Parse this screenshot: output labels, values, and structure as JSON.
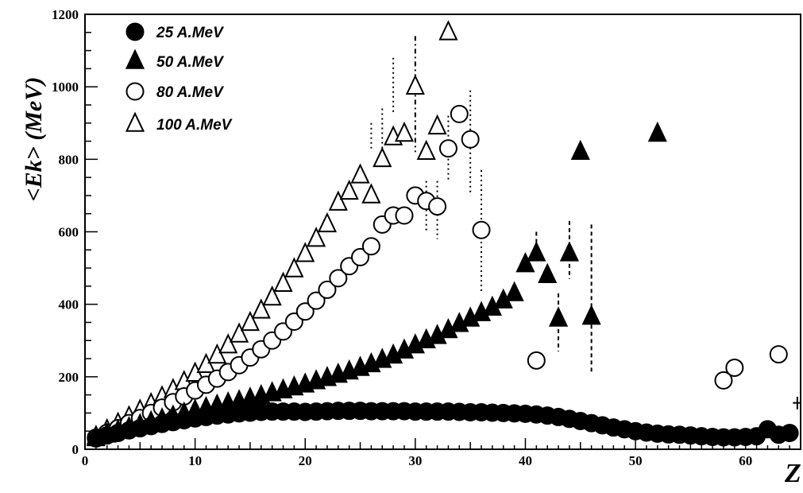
{
  "chart_data": {
    "type": "scatter",
    "xlabel": "Z",
    "ylabel": "<Ek> (MeV)",
    "xlim": [
      0,
      65
    ],
    "ylim": [
      0,
      1200
    ],
    "xticks": [
      "0",
      "10",
      "20",
      "30",
      "40",
      "50",
      "60"
    ],
    "yticks": [
      "0",
      "200",
      "400",
      "600",
      "800",
      "1000",
      "1200"
    ],
    "grid": false,
    "legend_position": "top-left",
    "series": [
      {
        "name": "25 A.MeV",
        "marker": "filled-circle",
        "points": [
          [
            1,
            30
          ],
          [
            2,
            38
          ],
          [
            3,
            45
          ],
          [
            4,
            52
          ],
          [
            5,
            58
          ],
          [
            6,
            64
          ],
          [
            7,
            70
          ],
          [
            8,
            75
          ],
          [
            9,
            80
          ],
          [
            10,
            85
          ],
          [
            11,
            89
          ],
          [
            12,
            93
          ],
          [
            13,
            96
          ],
          [
            14,
            99
          ],
          [
            15,
            101
          ],
          [
            16,
            103
          ],
          [
            17,
            104
          ],
          [
            18,
            104
          ],
          [
            19,
            104
          ],
          [
            20,
            103
          ],
          [
            21,
            104
          ],
          [
            22,
            105
          ],
          [
            23,
            106
          ],
          [
            24,
            106
          ],
          [
            25,
            106
          ],
          [
            26,
            105
          ],
          [
            27,
            105
          ],
          [
            28,
            105
          ],
          [
            29,
            105
          ],
          [
            30,
            104
          ],
          [
            31,
            104
          ],
          [
            32,
            104
          ],
          [
            33,
            104
          ],
          [
            34,
            103
          ],
          [
            35,
            102
          ],
          [
            36,
            102
          ],
          [
            37,
            101
          ],
          [
            38,
            100
          ],
          [
            39,
            99
          ],
          [
            40,
            98
          ],
          [
            41,
            96
          ],
          [
            42,
            93
          ],
          [
            43,
            89
          ],
          [
            44,
            84
          ],
          [
            45,
            78
          ],
          [
            46,
            72
          ],
          [
            47,
            66
          ],
          [
            48,
            60
          ],
          [
            49,
            55
          ],
          [
            50,
            50
          ],
          [
            51,
            46
          ],
          [
            52,
            43
          ],
          [
            53,
            41
          ],
          [
            54,
            40
          ],
          [
            55,
            38
          ],
          [
            56,
            36
          ],
          [
            57,
            34
          ],
          [
            58,
            33
          ],
          [
            59,
            33
          ],
          [
            60,
            34
          ],
          [
            61,
            36
          ],
          [
            62,
            55
          ],
          [
            63,
            40
          ],
          [
            64,
            45
          ]
        ]
      },
      {
        "name": "50 A.MeV",
        "marker": "filled-triangle",
        "points": [
          [
            1,
            30
          ],
          [
            2,
            40
          ],
          [
            3,
            50
          ],
          [
            4,
            58
          ],
          [
            5,
            66
          ],
          [
            6,
            74
          ],
          [
            7,
            82
          ],
          [
            8,
            90
          ],
          [
            9,
            98
          ],
          [
            10,
            106
          ],
          [
            11,
            113
          ],
          [
            12,
            120
          ],
          [
            13,
            126
          ],
          [
            14,
            132
          ],
          [
            15,
            139
          ],
          [
            16,
            146
          ],
          [
            17,
            154
          ],
          [
            18,
            162
          ],
          [
            19,
            170
          ],
          [
            20,
            178
          ],
          [
            21,
            187
          ],
          [
            22,
            196
          ],
          [
            23,
            205
          ],
          [
            24,
            214
          ],
          [
            25,
            224
          ],
          [
            26,
            234
          ],
          [
            27,
            246
          ],
          [
            28,
            258
          ],
          [
            29,
            272
          ],
          [
            30,
            286
          ],
          [
            31,
            300
          ],
          [
            32,
            312
          ],
          [
            33,
            328
          ],
          [
            34,
            345
          ],
          [
            35,
            360
          ],
          [
            36,
            375
          ],
          [
            37,
            390
          ],
          [
            38,
            410
          ],
          [
            39,
            430
          ],
          [
            40,
            510
          ],
          [
            41,
            540
          ],
          [
            42,
            480
          ],
          [
            43,
            360
          ],
          [
            44,
            540
          ],
          [
            45,
            820
          ],
          [
            46,
            365
          ],
          [
            52,
            870
          ]
        ]
      },
      {
        "name": "80 A.MeV",
        "marker": "open-circle",
        "points": [
          [
            1,
            32
          ],
          [
            2,
            45
          ],
          [
            3,
            58
          ],
          [
            4,
            72
          ],
          [
            5,
            86
          ],
          [
            6,
            100
          ],
          [
            7,
            115
          ],
          [
            8,
            130
          ],
          [
            9,
            146
          ],
          [
            10,
            162
          ],
          [
            11,
            178
          ],
          [
            12,
            195
          ],
          [
            13,
            213
          ],
          [
            14,
            232
          ],
          [
            15,
            253
          ],
          [
            16,
            276
          ],
          [
            17,
            300
          ],
          [
            18,
            325
          ],
          [
            19,
            352
          ],
          [
            20,
            380
          ],
          [
            21,
            410
          ],
          [
            22,
            440
          ],
          [
            23,
            472
          ],
          [
            24,
            505
          ],
          [
            25,
            530
          ],
          [
            26,
            560
          ],
          [
            27,
            620
          ],
          [
            28,
            645
          ],
          [
            29,
            645
          ],
          [
            30,
            700
          ],
          [
            31,
            685
          ],
          [
            32,
            670
          ],
          [
            33,
            830
          ],
          [
            34,
            925
          ],
          [
            35,
            855
          ],
          [
            36,
            605
          ],
          [
            41,
            245
          ],
          [
            58,
            190
          ],
          [
            59,
            225
          ],
          [
            63,
            262
          ]
        ]
      },
      {
        "name": "100 A.MeV",
        "marker": "open-triangle",
        "points": [
          [
            1,
            34
          ],
          [
            2,
            52
          ],
          [
            3,
            70
          ],
          [
            4,
            88
          ],
          [
            5,
            106
          ],
          [
            6,
            124
          ],
          [
            7,
            143
          ],
          [
            8,
            163
          ],
          [
            9,
            185
          ],
          [
            10,
            208
          ],
          [
            11,
            232
          ],
          [
            12,
            258
          ],
          [
            13,
            286
          ],
          [
            14,
            316
          ],
          [
            15,
            348
          ],
          [
            16,
            382
          ],
          [
            17,
            418
          ],
          [
            18,
            456
          ],
          [
            19,
            496
          ],
          [
            20,
            538
          ],
          [
            21,
            580
          ],
          [
            22,
            620
          ],
          [
            23,
            680
          ],
          [
            24,
            710
          ],
          [
            25,
            755
          ],
          [
            26,
            700
          ],
          [
            27,
            800
          ],
          [
            28,
            860
          ],
          [
            29,
            870
          ],
          [
            30,
            1000
          ],
          [
            31,
            820
          ],
          [
            32,
            890
          ],
          [
            33,
            1150
          ]
        ]
      }
    ]
  }
}
